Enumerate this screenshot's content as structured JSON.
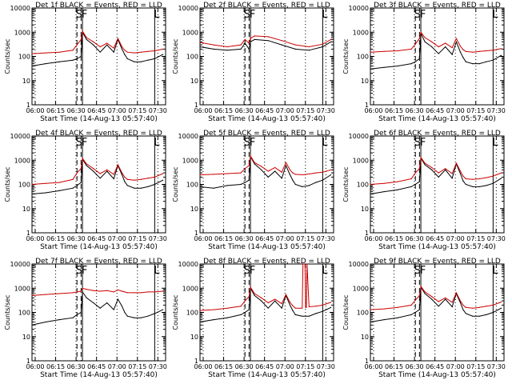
{
  "chart_data": [
    {
      "type": "line",
      "title": "Det 1f BLACK = Events, RED = LLD",
      "xlabel": "Start Time (14-Aug-13 05:57:40)",
      "ylabel": "Counts/sec",
      "y_scale": "log",
      "ylim": [
        1,
        10000
      ],
      "x_ticks": [
        "06:00",
        "06:15",
        "06:30",
        "06:45",
        "07:00",
        "07:15",
        "07:30"
      ],
      "y_ticks": [
        "1",
        "10",
        "100",
        "1000",
        "10000"
      ],
      "markers": [
        "S",
        "F",
        "L"
      ],
      "series": [
        {
          "color": "#000000",
          "x_min": [
            0,
            10,
            20,
            30,
            33,
            36,
            37,
            40,
            45,
            50,
            55,
            60,
            63,
            66,
            68,
            70,
            75,
            80,
            85,
            90,
            96
          ],
          "values": [
            40,
            50,
            60,
            70,
            80,
            100,
            1000,
            500,
            300,
            150,
            300,
            150,
            500,
            200,
            120,
            80,
            60,
            60,
            70,
            80,
            120
          ]
        },
        {
          "color": "#cc0000",
          "x_min": [
            0,
            10,
            20,
            30,
            33,
            36,
            37,
            40,
            45,
            50,
            55,
            60,
            63,
            66,
            68,
            70,
            75,
            80,
            85,
            90,
            96
          ],
          "values": [
            130,
            140,
            150,
            180,
            300,
            500,
            1100,
            600,
            400,
            250,
            350,
            220,
            550,
            250,
            180,
            150,
            140,
            150,
            160,
            170,
            200
          ]
        }
      ]
    },
    {
      "type": "line",
      "title": "Det 2f BLACK = Events, RED = LLD",
      "xlabel": "Start Time (14-Aug-13 05:57:40)",
      "ylabel": "Counts/sec",
      "y_scale": "log",
      "ylim": [
        1,
        10000
      ],
      "x_ticks": [
        "06:00",
        "06:15",
        "06:30",
        "06:45",
        "07:00",
        "07:15",
        "07:30"
      ],
      "y_ticks": [
        "1",
        "10",
        "100",
        "1000",
        "10000"
      ],
      "markers": [
        "S",
        "F",
        "L"
      ],
      "series": [
        {
          "color": "#000000",
          "x_min": [
            0,
            10,
            20,
            30,
            33,
            36,
            37,
            40,
            50,
            60,
            70,
            80,
            90,
            96
          ],
          "values": [
            250,
            200,
            180,
            200,
            350,
            200,
            400,
            500,
            450,
            300,
            200,
            180,
            250,
            400
          ]
        },
        {
          "color": "#cc0000",
          "x_min": [
            0,
            10,
            20,
            30,
            33,
            36,
            37,
            40,
            50,
            60,
            70,
            80,
            90,
            96
          ],
          "values": [
            380,
            300,
            250,
            300,
            500,
            350,
            550,
            700,
            650,
            450,
            300,
            250,
            320,
            500
          ]
        }
      ]
    },
    {
      "type": "line",
      "title": "Det 3f BLACK = Events, RED = LLD",
      "xlabel": "Start Time (14-Aug-13 05:57:40)",
      "ylabel": "Counts/sec",
      "y_scale": "log",
      "ylim": [
        1,
        10000
      ],
      "x_ticks": [
        "06:00",
        "06:15",
        "06:30",
        "06:45",
        "07:00",
        "07:15",
        "07:30"
      ],
      "y_ticks": [
        "1",
        "10",
        "100",
        "1000",
        "10000"
      ],
      "markers": [
        "S",
        "F",
        "L"
      ],
      "series": [
        {
          "color": "#000000",
          "x_min": [
            0,
            10,
            20,
            30,
            33,
            36,
            37,
            40,
            45,
            50,
            55,
            60,
            63,
            66,
            68,
            70,
            75,
            80,
            85,
            90,
            96
          ],
          "values": [
            30,
            35,
            40,
            50,
            60,
            80,
            900,
            400,
            250,
            130,
            250,
            120,
            400,
            150,
            90,
            60,
            50,
            50,
            60,
            70,
            110
          ]
        },
        {
          "color": "#cc0000",
          "x_min": [
            0,
            10,
            20,
            30,
            33,
            36,
            37,
            40,
            45,
            50,
            55,
            60,
            63,
            66,
            68,
            70,
            75,
            80,
            85,
            90,
            96
          ],
          "values": [
            150,
            160,
            170,
            200,
            320,
            550,
            1000,
            600,
            400,
            250,
            350,
            230,
            550,
            260,
            190,
            160,
            150,
            160,
            170,
            180,
            210
          ]
        }
      ]
    },
    {
      "type": "line",
      "title": "Det 4f BLACK = Events, RED = LLD",
      "xlabel": "Start Time (14-Aug-13 05:57:40)",
      "ylabel": "Counts/sec",
      "y_scale": "log",
      "ylim": [
        1,
        10000
      ],
      "x_ticks": [
        "06:00",
        "06:15",
        "06:30",
        "06:45",
        "07:00",
        "07:15",
        "07:30"
      ],
      "y_ticks": [
        "1",
        "10",
        "100",
        "1000",
        "10000"
      ],
      "markers": [
        "S",
        "F",
        "L"
      ],
      "series": [
        {
          "color": "#000000",
          "x_min": [
            0,
            10,
            20,
            30,
            33,
            36,
            37,
            40,
            45,
            50,
            55,
            60,
            63,
            66,
            68,
            70,
            75,
            80,
            85,
            90,
            96
          ],
          "values": [
            40,
            45,
            55,
            70,
            90,
            120,
            1100,
            600,
            350,
            180,
            350,
            170,
            600,
            250,
            130,
            90,
            70,
            70,
            80,
            100,
            150
          ]
        },
        {
          "color": "#cc0000",
          "x_min": [
            0,
            10,
            20,
            30,
            33,
            36,
            37,
            40,
            45,
            50,
            55,
            60,
            63,
            66,
            68,
            70,
            75,
            80,
            85,
            90,
            96
          ],
          "values": [
            100,
            110,
            120,
            160,
            300,
            450,
            1200,
            700,
            450,
            280,
            400,
            260,
            650,
            300,
            200,
            160,
            150,
            160,
            180,
            200,
            280
          ]
        }
      ]
    },
    {
      "type": "line",
      "title": "Det 5f BLACK = Events, RED = LLD",
      "xlabel": "Start Time (14-Aug-13 05:57:40)",
      "ylabel": "Counts/sec",
      "y_scale": "log",
      "ylim": [
        1,
        10000
      ],
      "x_ticks": [
        "06:00",
        "06:15",
        "06:30",
        "06:45",
        "07:00",
        "07:15",
        "07:30"
      ],
      "y_ticks": [
        "1",
        "10",
        "100",
        "1000",
        "10000"
      ],
      "markers": [
        "S",
        "F",
        "L"
      ],
      "series": [
        {
          "color": "#000000",
          "x_min": [
            0,
            10,
            20,
            30,
            33,
            36,
            37,
            40,
            45,
            50,
            55,
            60,
            63,
            66,
            68,
            70,
            75,
            80,
            85,
            90,
            96
          ],
          "values": [
            80,
            70,
            90,
            100,
            120,
            150,
            1400,
            700,
            400,
            200,
            350,
            180,
            600,
            250,
            150,
            100,
            80,
            90,
            120,
            150,
            250
          ]
        },
        {
          "color": "#cc0000",
          "x_min": [
            0,
            10,
            20,
            30,
            33,
            36,
            37,
            40,
            45,
            50,
            55,
            60,
            63,
            66,
            68,
            70,
            75,
            80,
            85,
            90,
            96
          ],
          "values": [
            250,
            260,
            280,
            300,
            450,
            600,
            1500,
            800,
            550,
            350,
            500,
            320,
            800,
            400,
            300,
            260,
            250,
            270,
            300,
            320,
            400
          ]
        }
      ]
    },
    {
      "type": "line",
      "title": "Det 6f BLACK = Events, RED = LLD",
      "xlabel": "Start Time (14-Aug-13 05:57:40)",
      "ylabel": "Counts/sec",
      "y_scale": "log",
      "ylim": [
        1,
        10000
      ],
      "x_ticks": [
        "06:00",
        "06:15",
        "06:30",
        "06:45",
        "07:00",
        "07:15",
        "07:30"
      ],
      "y_ticks": [
        "1",
        "10",
        "100",
        "1000",
        "10000"
      ],
      "markers": [
        "S",
        "F",
        "L"
      ],
      "series": [
        {
          "color": "#000000",
          "x_min": [
            0,
            10,
            20,
            30,
            33,
            36,
            37,
            40,
            45,
            50,
            55,
            60,
            63,
            66,
            68,
            70,
            75,
            80,
            85,
            90,
            96
          ],
          "values": [
            40,
            50,
            60,
            80,
            100,
            130,
            1200,
            650,
            400,
            200,
            400,
            180,
            700,
            280,
            140,
            100,
            80,
            80,
            90,
            110,
            180
          ]
        },
        {
          "color": "#cc0000",
          "x_min": [
            0,
            10,
            20,
            30,
            33,
            36,
            37,
            40,
            45,
            50,
            55,
            60,
            63,
            66,
            68,
            70,
            75,
            80,
            85,
            90,
            96
          ],
          "values": [
            100,
            110,
            130,
            170,
            300,
            450,
            1300,
            750,
            500,
            300,
            450,
            280,
            750,
            350,
            220,
            170,
            160,
            170,
            190,
            220,
            300
          ]
        }
      ]
    },
    {
      "type": "line",
      "title": "Det 7f BLACK = Events, RED = LLD",
      "xlabel": "Start Time (14-Aug-13 05:57:40)",
      "ylabel": "Counts/sec",
      "y_scale": "log",
      "ylim": [
        1,
        10000
      ],
      "x_ticks": [
        "06:00",
        "06:15",
        "06:30",
        "06:45",
        "07:00",
        "07:15",
        "07:30"
      ],
      "y_ticks": [
        "1",
        "10",
        "100",
        "1000",
        "10000"
      ],
      "markers": [
        "S",
        "F",
        "L"
      ],
      "series": [
        {
          "color": "#000000",
          "x_min": [
            0,
            10,
            20,
            30,
            33,
            36,
            37,
            40,
            45,
            50,
            55,
            60,
            63,
            66,
            68,
            70,
            75,
            80,
            85,
            90,
            96
          ],
          "values": [
            30,
            40,
            50,
            60,
            80,
            100,
            700,
            400,
            250,
            150,
            250,
            130,
            350,
            180,
            100,
            70,
            60,
            60,
            70,
            90,
            130
          ]
        },
        {
          "color": "#cc0000",
          "x_min": [
            0,
            10,
            20,
            30,
            33,
            36,
            37,
            40,
            45,
            50,
            55,
            60,
            63,
            66,
            68,
            70,
            75,
            80,
            85,
            90,
            96
          ],
          "values": [
            500,
            550,
            600,
            650,
            700,
            750,
            1000,
            900,
            800,
            750,
            800,
            700,
            850,
            750,
            700,
            650,
            650,
            650,
            700,
            700,
            750
          ]
        }
      ]
    },
    {
      "type": "line",
      "title": "Det 8f BLACK = Events, RED = LLD",
      "xlabel": "Start Time (14-Aug-13 05:57:40)",
      "ylabel": "Counts/sec",
      "y_scale": "log",
      "ylim": [
        1,
        10000
      ],
      "x_ticks": [
        "06:00",
        "06:15",
        "06:30",
        "06:45",
        "07:00",
        "07:15",
        "07:30"
      ],
      "y_ticks": [
        "1",
        "10",
        "100",
        "1000",
        "10000"
      ],
      "markers": [
        "S",
        "F",
        "L"
      ],
      "series": [
        {
          "color": "#000000",
          "x_min": [
            0,
            10,
            20,
            30,
            33,
            36,
            37,
            40,
            45,
            50,
            55,
            60,
            63,
            66,
            68,
            70,
            75,
            80,
            85,
            90,
            96
          ],
          "values": [
            40,
            50,
            60,
            80,
            100,
            130,
            1000,
            500,
            300,
            150,
            300,
            150,
            500,
            200,
            120,
            80,
            70,
            70,
            90,
            110,
            160
          ]
        },
        {
          "color": "#cc0000",
          "x_min": [
            0,
            10,
            20,
            30,
            33,
            36,
            37,
            40,
            45,
            50,
            55,
            60,
            63,
            66,
            68,
            70,
            75,
            75.5,
            77,
            77.5,
            78,
            78.5,
            80,
            85,
            90,
            96
          ],
          "values": [
            120,
            130,
            150,
            180,
            300,
            450,
            1100,
            600,
            400,
            250,
            350,
            230,
            550,
            260,
            190,
            150,
            150,
            10000,
            10000,
            160,
            160,
            10000,
            170,
            180,
            200,
            260
          ]
        }
      ]
    },
    {
      "type": "line",
      "title": "Det 9f BLACK = Events, RED = LLD",
      "xlabel": "Start Time (14-Aug-13 05:57:40)",
      "ylabel": "Counts/sec",
      "y_scale": "log",
      "ylim": [
        1,
        10000
      ],
      "x_ticks": [
        "06:00",
        "06:15",
        "06:30",
        "06:45",
        "07:00",
        "07:15",
        "07:30"
      ],
      "y_ticks": [
        "1",
        "10",
        "100",
        "1000",
        "10000"
      ],
      "markers": [
        "S",
        "F",
        "L"
      ],
      "series": [
        {
          "color": "#000000",
          "x_min": [
            0,
            10,
            20,
            30,
            33,
            36,
            37,
            40,
            45,
            50,
            55,
            60,
            63,
            66,
            68,
            70,
            75,
            80,
            85,
            90,
            96
          ],
          "values": [
            40,
            50,
            60,
            80,
            100,
            130,
            1100,
            600,
            350,
            180,
            350,
            170,
            600,
            250,
            130,
            90,
            70,
            70,
            80,
            100,
            150
          ]
        },
        {
          "color": "#cc0000",
          "x_min": [
            0,
            10,
            20,
            30,
            33,
            36,
            37,
            40,
            45,
            50,
            55,
            60,
            63,
            66,
            68,
            70,
            75,
            80,
            85,
            90,
            96
          ],
          "values": [
            130,
            140,
            160,
            200,
            320,
            500,
            1200,
            700,
            450,
            280,
            400,
            260,
            650,
            300,
            200,
            160,
            150,
            160,
            180,
            200,
            270
          ]
        }
      ]
    }
  ]
}
